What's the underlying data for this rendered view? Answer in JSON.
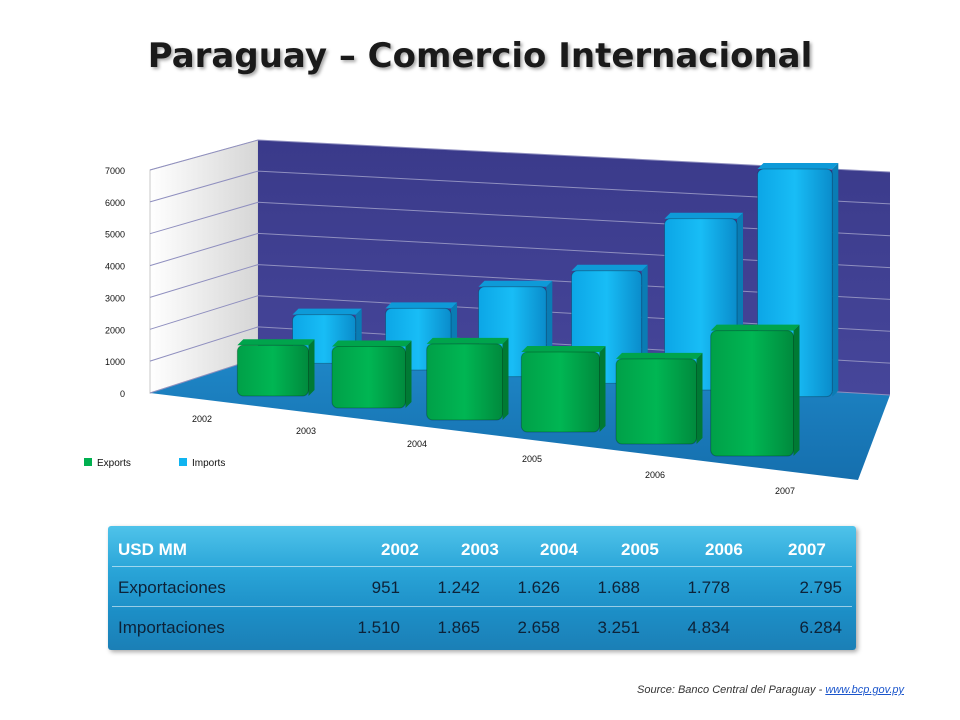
{
  "title": "Paraguay – Comercio Internacional",
  "chart_data": {
    "type": "bar",
    "categories": [
      "2002",
      "2003",
      "2004",
      "2005",
      "2006",
      "2007"
    ],
    "series": [
      {
        "name": "Exports",
        "values": [
          951,
          1242,
          1626,
          1688,
          1778,
          2795
        ],
        "color": "#00b050"
      },
      {
        "name": "Imports",
        "values": [
          1510,
          1865,
          2658,
          3251,
          4834,
          6284
        ],
        "color": "#10b4f0"
      }
    ],
    "yticks": [
      0,
      1000,
      2000,
      3000,
      4000,
      5000,
      6000,
      7000
    ],
    "ylim": [
      0,
      7000
    ],
    "grid": true,
    "legend_position": "bottom-left",
    "wall_color": "#3b3b8c",
    "floor_color": "#1b88c8"
  },
  "table": {
    "header": [
      "USD MM",
      "2002",
      "2003",
      "2004",
      "2005",
      "2006",
      "2007"
    ],
    "rows": [
      [
        "Exportaciones",
        "951",
        "1.242",
        "1.626",
        "1.688",
        "1.778",
        "2.795"
      ],
      [
        "Importaciones",
        "1.510",
        "1.865",
        "2.658",
        "3.251",
        "4.834",
        "6.284"
      ]
    ]
  },
  "source": {
    "label": "Source: Banco Central del Paraguay - ",
    "link_text": "www.bcp.gov.py"
  }
}
